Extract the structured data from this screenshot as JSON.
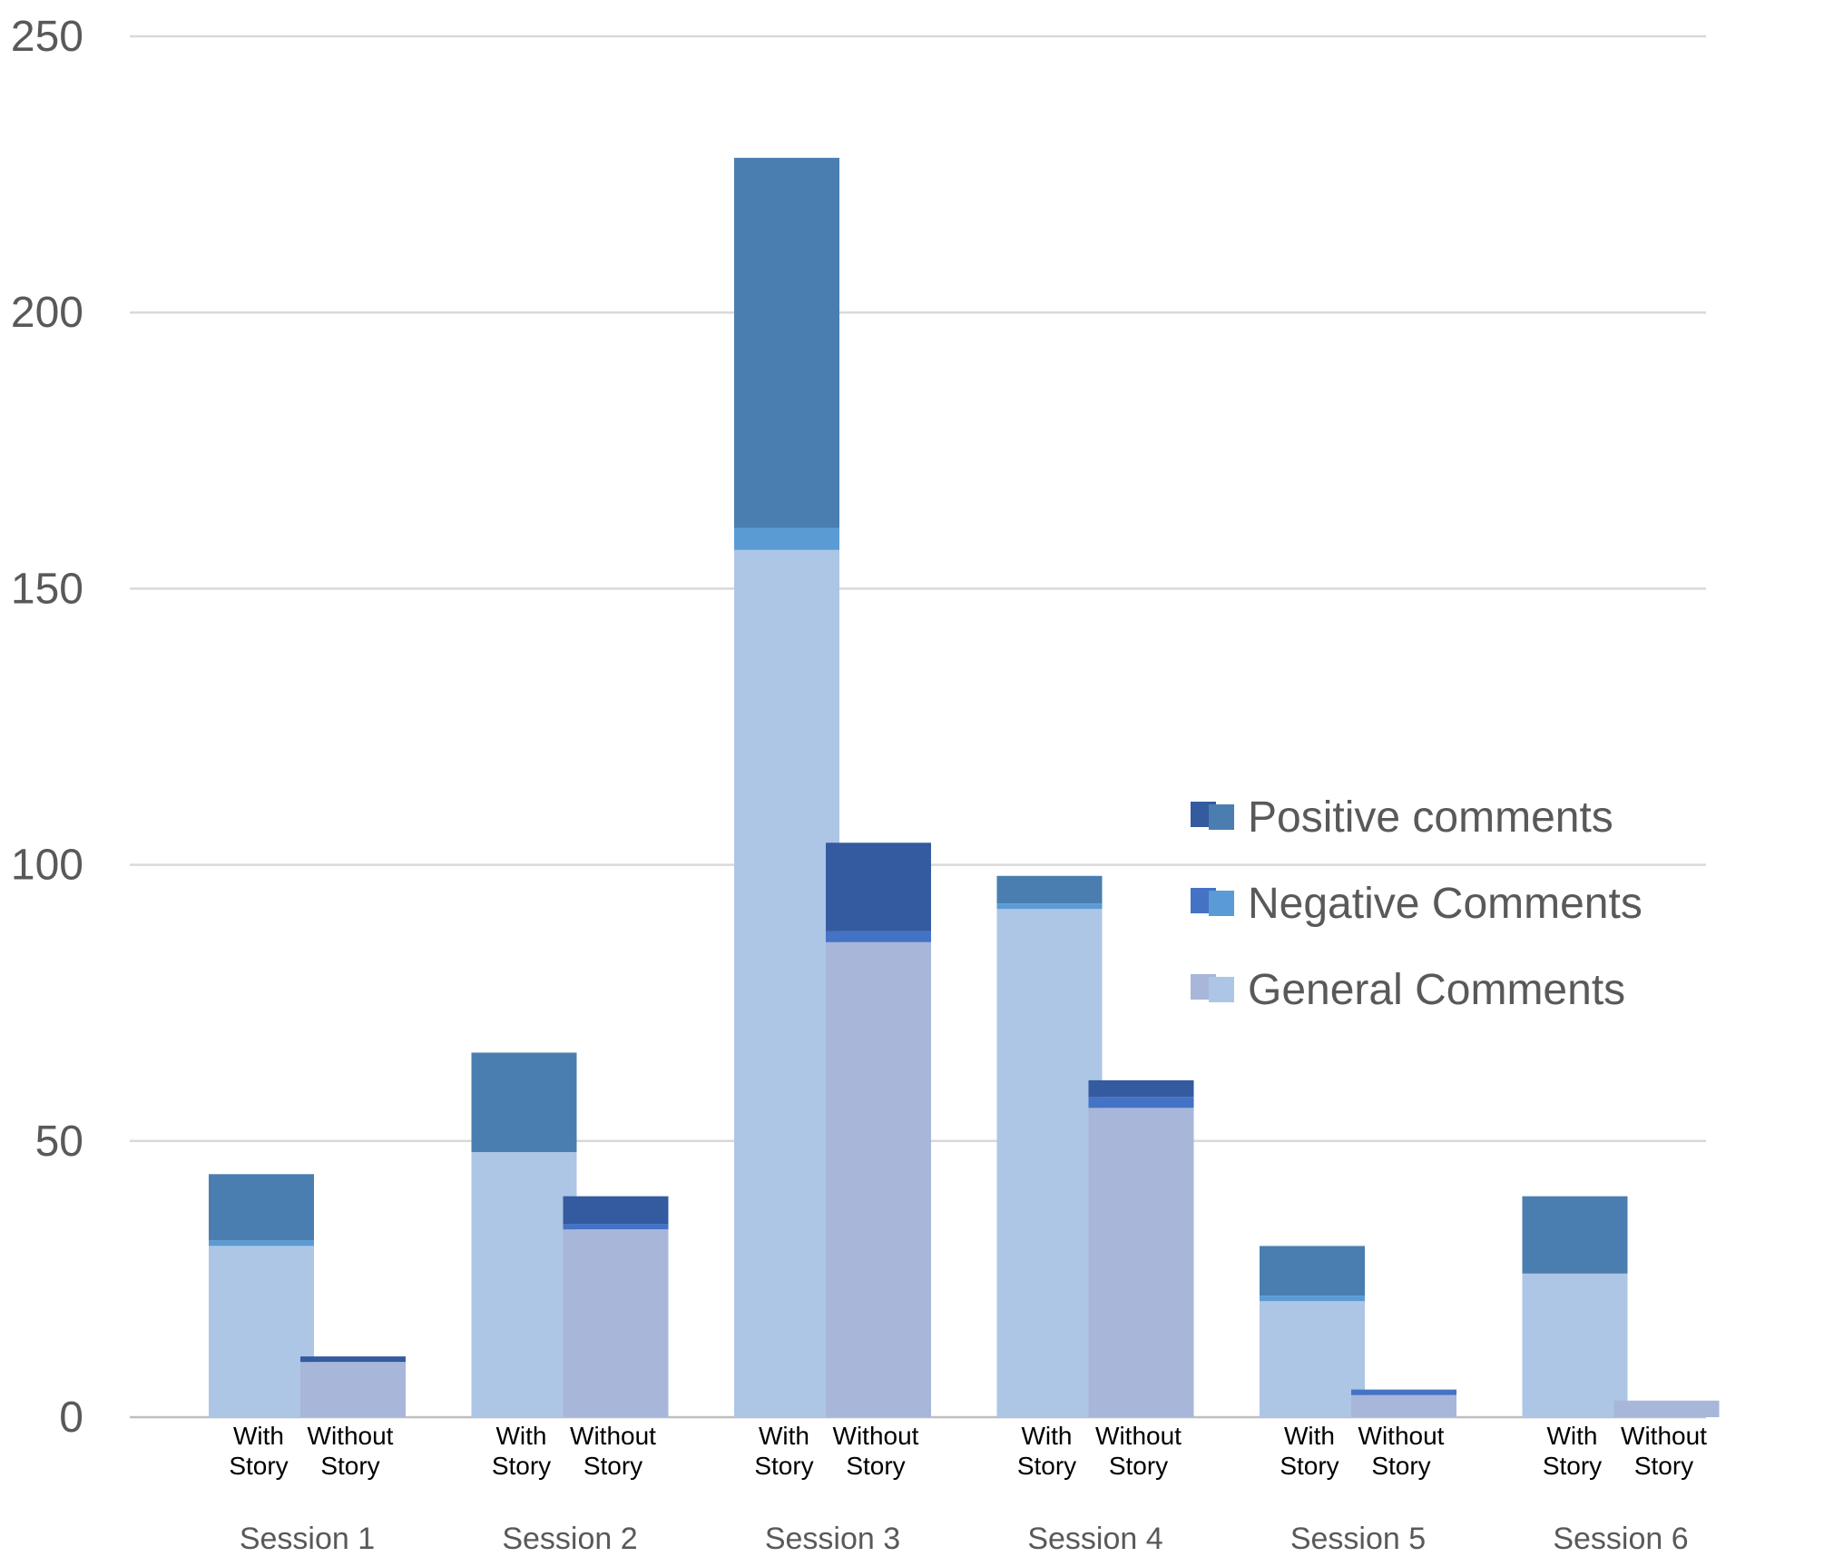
{
  "chart_data": {
    "type": "bar",
    "stacked": true,
    "sessions": [
      "Session 1",
      "Session 2",
      "Session 3",
      "Session 4",
      "Session 5",
      "Session 6"
    ],
    "conditions": [
      [
        "With",
        "Story"
      ],
      [
        "Without",
        "Story"
      ]
    ],
    "series": [
      {
        "name": "General Comments",
        "with_story": [
          31,
          48,
          157,
          92,
          21,
          26
        ],
        "without_story": [
          10,
          34,
          86,
          56,
          4,
          3
        ]
      },
      {
        "name": "Negative Comments",
        "with_story": [
          1,
          0,
          4,
          1,
          1,
          0
        ],
        "without_story": [
          0,
          1,
          2,
          2,
          1,
          0
        ]
      },
      {
        "name": "Positive comments",
        "with_story": [
          12,
          18,
          67,
          5,
          9,
          14
        ],
        "without_story": [
          1,
          5,
          16,
          3,
          0,
          0
        ]
      }
    ],
    "colors": {
      "with_story": {
        "General Comments": "#adc6e5",
        "Negative Comments": "#5b9bd5",
        "Positive comments": "#4a7eb0"
      },
      "without_story": {
        "General Comments": "#a8b6da",
        "Negative Comments": "#4472c4",
        "Positive comments": "#345aa0"
      }
    },
    "yticks": [
      0,
      50,
      100,
      150,
      200,
      250
    ],
    "ylim": [
      0,
      250
    ],
    "grid": true,
    "legend": {
      "placement": "right-middle",
      "entries": [
        "Positive comments",
        "Negative Comments",
        "General Comments"
      ]
    }
  }
}
